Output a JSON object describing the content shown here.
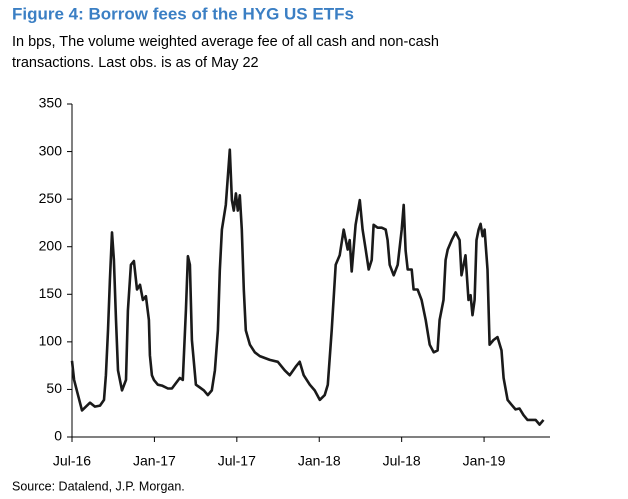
{
  "chart_data": {
    "type": "line",
    "title": "Figure 4: Borrow fees of the HYG US ETFs",
    "subtitle": [
      "In bps, The volume weighted average fee of all cash and non-cash",
      "transactions. Last obs. is as of May 22"
    ],
    "source": "Source: Datalend, J.P. Morgan.",
    "x": [
      0,
      0.15,
      0.44,
      0.73,
      1.02,
      1.31,
      1.67,
      2.04,
      2.33,
      2.47,
      2.62,
      2.76,
      2.91,
      3.05,
      3.2,
      3.35,
      3.64,
      3.93,
      4.07,
      4.29,
      4.51,
      4.73,
      4.95,
      5.16,
      5.38,
      5.6,
      5.67,
      5.82,
      5.96,
      6.25,
      6.55,
      6.98,
      7.27,
      7.85,
      8.07,
      8.29,
      8.44,
      8.58,
      8.73,
      9.02,
      9.31,
      9.6,
      9.89,
      10.18,
      10.4,
      10.62,
      10.76,
      10.91,
      11.2,
      11.49,
      11.64,
      11.78,
      11.93,
      12.07,
      12.22,
      12.36,
      12.51,
      12.65,
      12.95,
      13.31,
      13.67,
      14.04,
      14.4,
      14.98,
      15.49,
      15.85,
      16.29,
      16.58,
      16.87,
      17.31,
      17.67,
      18.04,
      18.4,
      18.62,
      18.91,
      19.2,
      19.49,
      19.78,
      20.07,
      20.22,
      20.36,
      20.65,
      20.95,
      21.16,
      21.38,
      21.6,
      21.82,
      21.96,
      22.25,
      22.55,
      22.84,
      22.98,
      23.13,
      23.42,
      23.71,
      24,
      24.15,
      24.29,
      24.44,
      24.73,
      24.87,
      25.16,
      25.45,
      25.75,
      26.04,
      26.33,
      26.62,
      26.76,
      27.05,
      27.2,
      27.35,
      27.64,
      27.93,
      28.22,
      28.36,
      28.65,
      28.87,
      29.02,
      29.16,
      29.31,
      29.45,
      29.6,
      29.75,
      29.89,
      30.04,
      30.25,
      30.4,
      30.69,
      30.98,
      31.27,
      31.42,
      31.71,
      32,
      32.29,
      32.58,
      32.87,
      33.16,
      33.45,
      33.75,
      34.04,
      34.33
    ],
    "series": [
      {
        "color": "#1a1a1a",
        "values": [
          80,
          60,
          44,
          28,
          32,
          36,
          32,
          33,
          39,
          65,
          112,
          165,
          215,
          186,
          123,
          70,
          49,
          60,
          133,
          181,
          185,
          155,
          160,
          144,
          148,
          123,
          86,
          65,
          60,
          55,
          54,
          51,
          51,
          62,
          60,
          133,
          190,
          181,
          102,
          55,
          52,
          49,
          44,
          49,
          70,
          112,
          175,
          218,
          244,
          302,
          249,
          238,
          256,
          238,
          254,
          218,
          155,
          112,
          97,
          89,
          85,
          83,
          81,
          79,
          70,
          65,
          74,
          79,
          65,
          55,
          49,
          39,
          44,
          55,
          112,
          181,
          191,
          218,
          197,
          207,
          174,
          223,
          249,
          218,
          197,
          176,
          186,
          223,
          220,
          220,
          218,
          207,
          181,
          170,
          181,
          218,
          244,
          196,
          176,
          176,
          155,
          155,
          144,
          123,
          97,
          89,
          91,
          123,
          144,
          186,
          197,
          207,
          215,
          207,
          170,
          191,
          144,
          149,
          128,
          144,
          207,
          218,
          224,
          211,
          218,
          176,
          97,
          102,
          105,
          91,
          62,
          39,
          34,
          29,
          30,
          23,
          18,
          18,
          18,
          13,
          18
        ]
      }
    ],
    "xlim": [
      0,
      34.8
    ],
    "xticks": [
      {
        "value": 0,
        "label": "Jul-16"
      },
      {
        "value": 6,
        "label": "Jan-17"
      },
      {
        "value": 12,
        "label": "Jul-17"
      },
      {
        "value": 18,
        "label": "Jan-18"
      },
      {
        "value": 24,
        "label": "Jul-18"
      },
      {
        "value": 30,
        "label": "Jan-19"
      }
    ],
    "ylim": [
      0,
      350
    ],
    "yticks": [
      0,
      50,
      100,
      150,
      200,
      250,
      300,
      350
    ]
  }
}
